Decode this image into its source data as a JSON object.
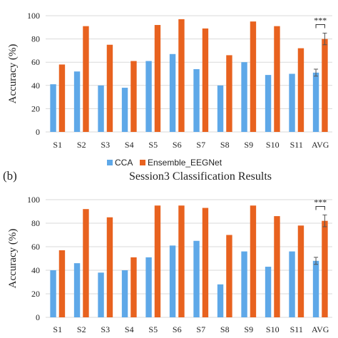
{
  "chart_data": [
    {
      "type": "bar",
      "panel_label": "",
      "title": "",
      "ylabel": "Accuracy (%)",
      "ylim": [
        0,
        100
      ],
      "yticks": [
        0,
        20,
        40,
        60,
        80,
        100
      ],
      "categories": [
        "S1",
        "S2",
        "S3",
        "S4",
        "S5",
        "S6",
        "S7",
        "S8",
        "S9",
        "S10",
        "S11",
        "AVG"
      ],
      "series": [
        {
          "name": "CCA",
          "color": "#5ea8e8",
          "values": [
            41,
            52,
            40,
            38,
            61,
            67,
            54,
            40,
            60,
            49,
            50,
            51
          ],
          "error": {
            "AVG": 3
          }
        },
        {
          "name": "Ensemble_EEGNet",
          "color": "#e8621f",
          "values": [
            58,
            91,
            75,
            61,
            92,
            97,
            89,
            66,
            95,
            91,
            72,
            80
          ],
          "error": {
            "AVG": 5
          }
        }
      ],
      "significance": "***",
      "legend": {
        "position": "bottom",
        "items": [
          "CCA",
          "Ensemble_EEGNet"
        ]
      }
    },
    {
      "type": "bar",
      "panel_label": "(b)",
      "title": "Session3 Classification Results",
      "ylabel": "Accuracy (%)",
      "ylim": [
        0,
        100
      ],
      "yticks": [
        0,
        20,
        40,
        60,
        80,
        100
      ],
      "categories": [
        "S1",
        "S2",
        "S3",
        "S4",
        "S5",
        "S6",
        "S7",
        "S8",
        "S9",
        "S10",
        "S11",
        "AVG"
      ],
      "series": [
        {
          "name": "CCA",
          "color": "#5ea8e8",
          "values": [
            40,
            46,
            38,
            40,
            51,
            61,
            65,
            28,
            56,
            43,
            56,
            48
          ],
          "error": {
            "AVG": 3
          }
        },
        {
          "name": "Ensemble_EEGNet",
          "color": "#e8621f",
          "values": [
            57,
            92,
            85,
            51,
            95,
            95,
            93,
            70,
            95,
            86,
            78,
            82
          ],
          "error": {
            "AVG": 5
          }
        }
      ],
      "significance": "***"
    }
  ]
}
